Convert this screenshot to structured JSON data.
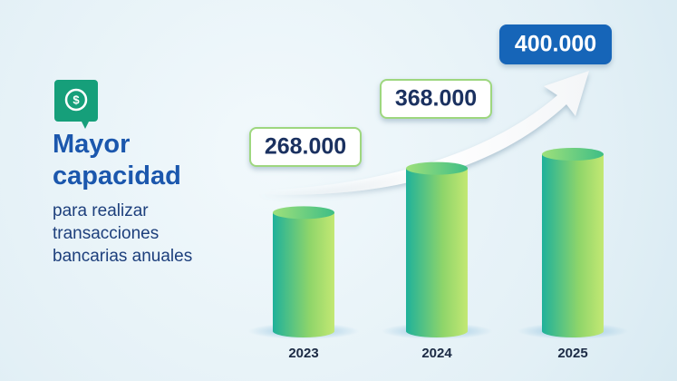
{
  "chart_data": {
    "type": "bar",
    "title": "Mayor capacidad",
    "subtitle": "para realizar transacciones bancarias anuales",
    "categories": [
      "2023",
      "2024",
      "2025"
    ],
    "values": [
      268000,
      368000,
      400000
    ],
    "value_labels": [
      "268.000",
      "368.000",
      "400.000"
    ]
  }
}
